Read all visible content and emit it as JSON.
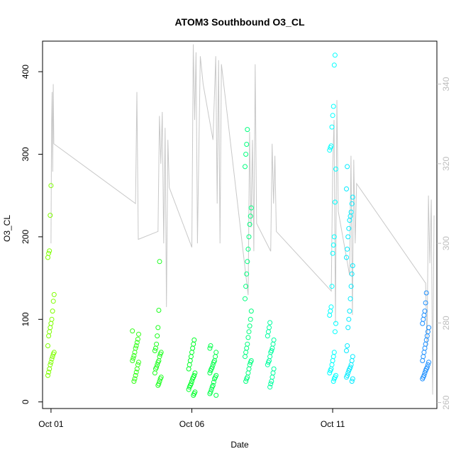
{
  "chart_data": {
    "type": "scatter",
    "title": "ATOM3 Southbound O3_CL",
    "xlabel": "Date",
    "ylabel": "O3_CL",
    "x_ticks": [
      "Oct 01",
      "Oct 06",
      "Oct 11"
    ],
    "x_tick_days": [
      1,
      6,
      11
    ],
    "xlim_days": [
      0.7,
      14.7
    ],
    "y_ticks": [
      0,
      100,
      200,
      300,
      400
    ],
    "ylim": [
      -8,
      437
    ],
    "y2_ticks": [
      260,
      280,
      300,
      320,
      340
    ],
    "y2lim": [
      258.5,
      350.8
    ],
    "grid": false,
    "colors": {
      "line": "#c8c8c8",
      "axis": "#000000",
      "right_axis": "#bdbdbd",
      "point_start": "#7fff00",
      "point_mid": "#00ff7f",
      "point_cyan": "#00ffff",
      "point_end": "#1e90ff"
    },
    "series": [
      {
        "type": "line",
        "axis": "right",
        "values": [
          [
            1.0,
            300
          ],
          [
            1.02,
            330
          ],
          [
            1.04,
            338
          ],
          [
            1.06,
            318
          ],
          [
            1.08,
            340
          ],
          [
            1.1,
            325
          ],
          [
            4.0,
            310
          ],
          [
            4.05,
            338
          ],
          [
            4.1,
            301
          ],
          [
            4.8,
            303
          ],
          [
            4.85,
            332
          ],
          [
            4.9,
            320
          ],
          [
            4.95,
            333
          ],
          [
            5.0,
            300
          ],
          [
            5.05,
            329
          ],
          [
            5.1,
            284
          ],
          [
            5.15,
            326
          ],
          [
            5.2,
            314
          ],
          [
            6.0,
            299
          ],
          [
            6.05,
            350
          ],
          [
            6.1,
            331
          ],
          [
            6.15,
            348
          ],
          [
            6.2,
            300
          ],
          [
            6.3,
            347
          ],
          [
            6.4,
            340
          ],
          [
            6.75,
            326
          ],
          [
            6.85,
            347
          ],
          [
            6.9,
            310
          ],
          [
            6.95,
            346
          ],
          [
            7.0,
            300
          ],
          [
            7.05,
            345
          ],
          [
            8.0,
            287
          ],
          [
            8.05,
            328
          ],
          [
            8.1,
            304
          ],
          [
            8.15,
            326
          ],
          [
            8.2,
            298
          ],
          [
            8.25,
            345
          ],
          [
            8.3,
            305
          ],
          [
            8.8,
            298
          ],
          [
            8.85,
            325
          ],
          [
            8.9,
            310
          ],
          [
            8.95,
            322
          ],
          [
            9.0,
            303
          ],
          [
            10.95,
            288
          ],
          [
            11.0,
            319
          ],
          [
            11.05,
            331
          ],
          [
            11.1,
            280
          ],
          [
            11.15,
            336
          ],
          [
            11.2,
            308
          ],
          [
            11.6,
            292
          ],
          [
            11.65,
            322
          ],
          [
            11.7,
            282
          ],
          [
            11.75,
            321
          ],
          [
            11.8,
            300
          ],
          [
            11.85,
            315
          ],
          [
            14.3,
            290
          ],
          [
            14.35,
            274
          ],
          [
            14.4,
            312
          ],
          [
            14.45,
            295
          ],
          [
            14.5,
            311
          ],
          [
            14.55,
            262
          ],
          [
            14.6,
            307
          ]
        ]
      },
      {
        "type": "points",
        "axis": "left",
        "groups": [
          {
            "x": 1.0,
            "y": [
              32,
              36,
              40,
              45,
              48,
              52,
              55,
              58,
              60,
              68,
              80,
              85,
              90,
              95,
              100,
              110,
              122,
              130,
              175,
              180,
              183,
              226,
              262
            ]
          },
          {
            "x": 4.0,
            "y": [
              25,
              28,
              32,
              36,
              40,
              45,
              48,
              50,
              53,
              56,
              60,
              65,
              68,
              72,
              76,
              82,
              86
            ]
          },
          {
            "x": 4.8,
            "y": [
              20,
              22,
              25,
              28,
              30,
              35,
              40,
              42,
              45,
              48,
              50,
              55,
              58,
              60,
              62,
              65,
              70,
              80,
              90,
              111,
              170
            ]
          },
          {
            "x": 6.0,
            "y": [
              8,
              10,
              12,
              15,
              18,
              20,
              22,
              25,
              28,
              30,
              32,
              35,
              40,
              45,
              50,
              55,
              60,
              65,
              70,
              75
            ]
          },
          {
            "x": 6.75,
            "y": [
              8,
              10,
              12,
              15,
              18,
              20,
              24,
              28,
              30,
              32,
              35,
              38,
              40,
              42,
              45,
              48,
              50,
              55,
              60,
              65,
              68
            ]
          },
          {
            "x": 8.0,
            "y": [
              25,
              28,
              30,
              35,
              40,
              45,
              48,
              50,
              55,
              60,
              65,
              70,
              78,
              85,
              92,
              100,
              110,
              125,
              140,
              155,
              170,
              185,
              200,
              215,
              225,
              235,
              285,
              300,
              312,
              330
            ]
          },
          {
            "x": 8.8,
            "y": [
              18,
              22,
              25,
              30,
              35,
              40,
              45,
              48,
              50,
              55,
              60,
              62,
              65,
              70,
              75,
              80,
              85,
              90,
              96
            ]
          },
          {
            "x": 11.0,
            "y": [
              25,
              28,
              30,
              32,
              35,
              38,
              40,
              45,
              50,
              55,
              60,
              85,
              95,
              105,
              110,
              115,
              140,
              180,
              190,
              200,
              242,
              282,
              305,
              308,
              310,
              333,
              347,
              358,
              408,
              420
            ]
          },
          {
            "x": 11.6,
            "y": [
              25,
              28,
              30,
              32,
              35,
              38,
              40,
              42,
              45,
              50,
              55,
              62,
              68,
              90,
              100,
              110,
              125,
              140,
              155,
              165,
              175,
              185,
              200,
              210,
              220,
              225,
              230,
              240,
              248,
              258,
              285
            ]
          },
          {
            "x": 14.3,
            "y": [
              28,
              30,
              32,
              35,
              38,
              40,
              42,
              45,
              48,
              50,
              55,
              60,
              65,
              70,
              75,
              80,
              85,
              90,
              95,
              100,
              105,
              110,
              120,
              132
            ]
          }
        ]
      }
    ]
  }
}
